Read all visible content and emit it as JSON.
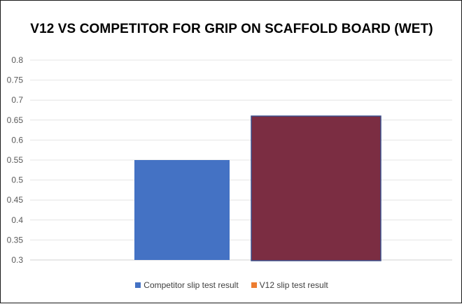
{
  "chart_data": {
    "type": "bar",
    "title": "V12 VS COMPETITOR FOR GRIP ON SCAFFOLD BOARD (WET)",
    "xlabel": "",
    "ylabel": "",
    "ylim": [
      0.3,
      0.8
    ],
    "yticks": [
      "0.8",
      "0.75",
      "0.7",
      "0.65",
      "0.6",
      "0.55",
      "0.5",
      "0.45",
      "0.4",
      "0.35",
      "0.3"
    ],
    "grid": true,
    "legend_position": "bottom",
    "series": [
      {
        "name": "Competitor slip test result",
        "value": 0.55,
        "bar_color": "#4472c4",
        "legend_color": "#4472c4"
      },
      {
        "name": "V12 slip test result",
        "value": 0.66,
        "bar_color": "#7b2d42",
        "legend_color": "#ed7d31"
      }
    ]
  }
}
